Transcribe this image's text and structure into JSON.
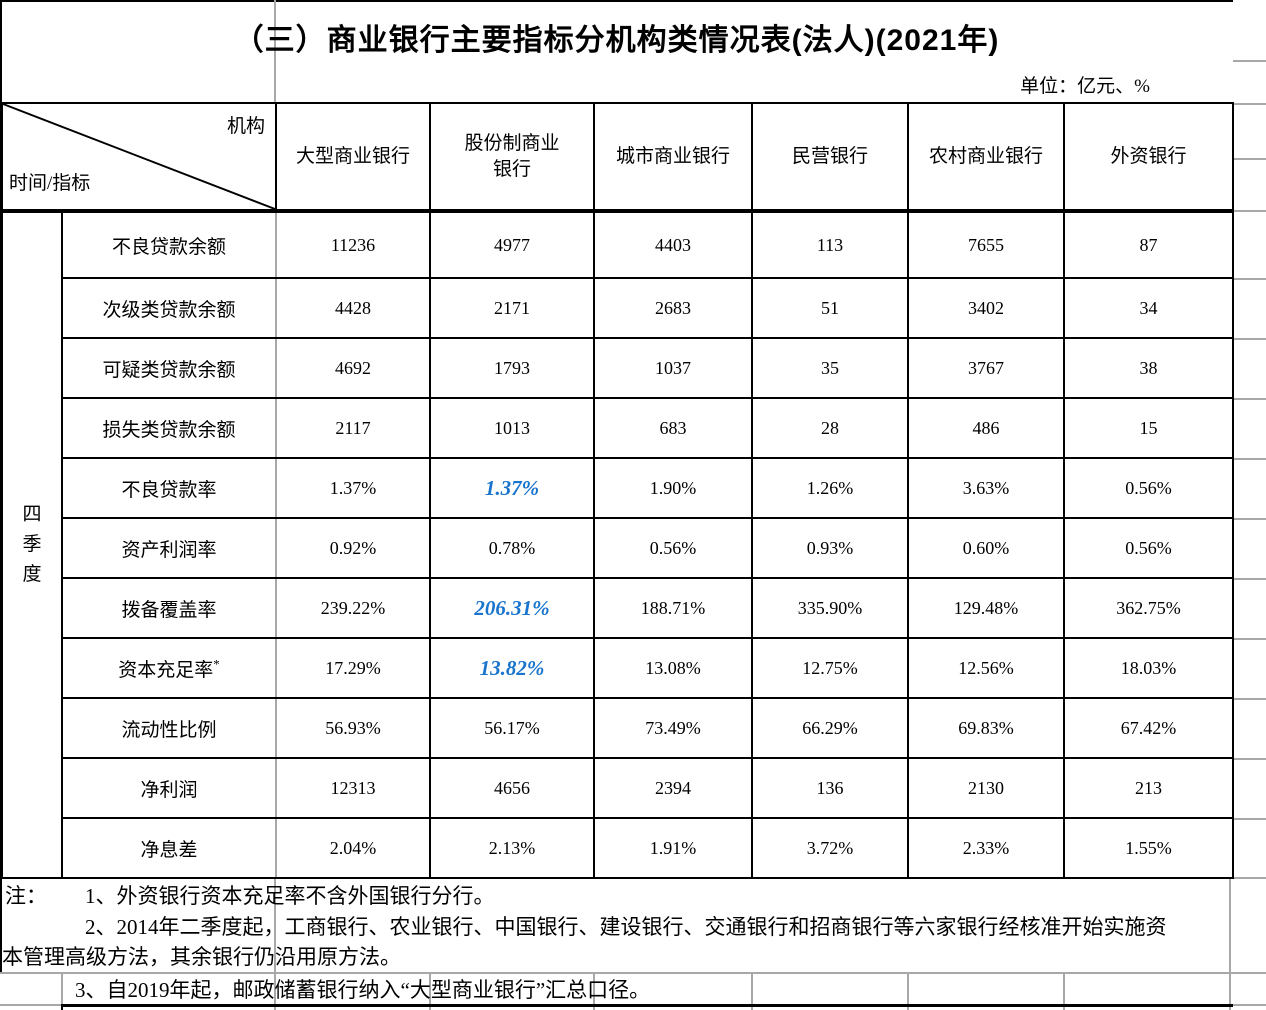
{
  "title": "（三）商业银行主要指标分机构类情况表(法人)(2021年)",
  "unit_label": "单位：亿元、%",
  "table": {
    "corner_top_right": "机构",
    "corner_bottom_left": "时间/指标",
    "period_label": "四季度",
    "columns": [
      "大型商业银行",
      "股份制商业银行",
      "城市商业银行",
      "民营银行",
      "农村商业银行",
      "外资银行"
    ],
    "highlight_color": "#1874cd",
    "rows": [
      {
        "label": "不良贷款余额",
        "values": [
          "11236",
          "4977",
          "4403",
          "113",
          "7655",
          "87"
        ]
      },
      {
        "label": "次级类贷款余额",
        "values": [
          "4428",
          "2171",
          "2683",
          "51",
          "3402",
          "34"
        ]
      },
      {
        "label": "可疑类贷款余额",
        "values": [
          "4692",
          "1793",
          "1037",
          "35",
          "3767",
          "38"
        ]
      },
      {
        "label": "损失类贷款余额",
        "values": [
          "2117",
          "1013",
          "683",
          "28",
          "486",
          "15"
        ]
      },
      {
        "label": "不良贷款率",
        "values": [
          "1.37%",
          "1.37%",
          "1.90%",
          "1.26%",
          "3.63%",
          "0.56%"
        ],
        "highlight_col": 1
      },
      {
        "label": "资产利润率",
        "values": [
          "0.92%",
          "0.78%",
          "0.56%",
          "0.93%",
          "0.60%",
          "0.56%"
        ]
      },
      {
        "label": "拨备覆盖率",
        "values": [
          "239.22%",
          "206.31%",
          "188.71%",
          "335.90%",
          "129.48%",
          "362.75%"
        ],
        "highlight_col": 1
      },
      {
        "label": "资本充足率",
        "label_superscript": "*",
        "values": [
          "17.29%",
          "13.82%",
          "13.08%",
          "12.75%",
          "12.56%",
          "18.03%"
        ],
        "highlight_col": 1
      },
      {
        "label": "流动性比例",
        "values": [
          "56.93%",
          "56.17%",
          "73.49%",
          "66.29%",
          "69.83%",
          "67.42%"
        ]
      },
      {
        "label": "净利润",
        "values": [
          "12313",
          "4656",
          "2394",
          "136",
          "2130",
          "213"
        ]
      },
      {
        "label": "净息差",
        "values": [
          "2.04%",
          "2.13%",
          "1.91%",
          "3.72%",
          "2.33%",
          "1.55%"
        ]
      }
    ]
  },
  "notes": {
    "label": "注：",
    "line1": "1、外资银行资本充足率不含外国银行分行。",
    "line2": "2、2014年二季度起，工商银行、农业银行、中国银行、建设银行、交通银行和招商银行等六家银行经核准开始实施资",
    "line3": "本管理高级方法，其余银行仍沿用原方法。",
    "line4": "3、自2019年起，邮政储蓄银行纳入“大型商业银行”汇总口径。"
  }
}
